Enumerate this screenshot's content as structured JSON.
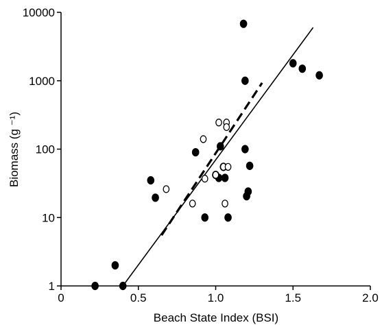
{
  "chart_data": {
    "type": "scatter",
    "xlabel": "Beach State Index (BSI)",
    "ylabel": "Biomass (g ⁻¹)",
    "xlim": [
      0,
      2.0
    ],
    "ylim": [
      1,
      10000
    ],
    "yscale": "log",
    "x_ticks": [
      0,
      0.5,
      1.0,
      1.5,
      2.0
    ],
    "x_tick_labels": [
      "0",
      "0.5",
      "1.0",
      "1.5",
      "2.0"
    ],
    "y_ticks": [
      1,
      10,
      100,
      1000,
      10000
    ],
    "y_tick_labels": [
      "1",
      "10",
      "100",
      "1000",
      "10000"
    ],
    "grid": false,
    "series": [
      {
        "marker": "filled-circle",
        "color": "#000000",
        "points": [
          {
            "x": 0.22,
            "y": 1.0
          },
          {
            "x": 0.35,
            "y": 2.0
          },
          {
            "x": 0.4,
            "y": 1.0
          },
          {
            "x": 0.58,
            "y": 35
          },
          {
            "x": 0.61,
            "y": 19.5
          },
          {
            "x": 0.87,
            "y": 90
          },
          {
            "x": 0.93,
            "y": 10
          },
          {
            "x": 1.0,
            "y": 42
          },
          {
            "x": 1.02,
            "y": 38
          },
          {
            "x": 1.03,
            "y": 110
          },
          {
            "x": 1.05,
            "y": 55
          },
          {
            "x": 1.06,
            "y": 38
          },
          {
            "x": 1.08,
            "y": 10
          },
          {
            "x": 1.18,
            "y": 6800
          },
          {
            "x": 1.19,
            "y": 100
          },
          {
            "x": 1.19,
            "y": 1000
          },
          {
            "x": 1.2,
            "y": 20.5
          },
          {
            "x": 1.21,
            "y": 24
          },
          {
            "x": 1.22,
            "y": 57
          },
          {
            "x": 1.5,
            "y": 1800
          },
          {
            "x": 1.56,
            "y": 1500
          },
          {
            "x": 1.67,
            "y": 1200
          }
        ]
      },
      {
        "marker": "open-circle",
        "color": "#000000",
        "points": [
          {
            "x": 0.68,
            "y": 26
          },
          {
            "x": 0.85,
            "y": 16
          },
          {
            "x": 0.92,
            "y": 140
          },
          {
            "x": 0.93,
            "y": 37
          },
          {
            "x": 1.0,
            "y": 42
          },
          {
            "x": 1.02,
            "y": 245
          },
          {
            "x": 1.05,
            "y": 55
          },
          {
            "x": 1.06,
            "y": 16
          },
          {
            "x": 1.07,
            "y": 245
          },
          {
            "x": 1.07,
            "y": 210
          },
          {
            "x": 1.08,
            "y": 55
          }
        ]
      }
    ],
    "fit_lines": [
      {
        "style": "solid",
        "x": [
          0.4,
          1.63
        ],
        "y": [
          1.0,
          6000
        ]
      },
      {
        "style": "dashed",
        "x": [
          0.65,
          1.3
        ],
        "y": [
          5.5,
          930
        ]
      }
    ]
  }
}
